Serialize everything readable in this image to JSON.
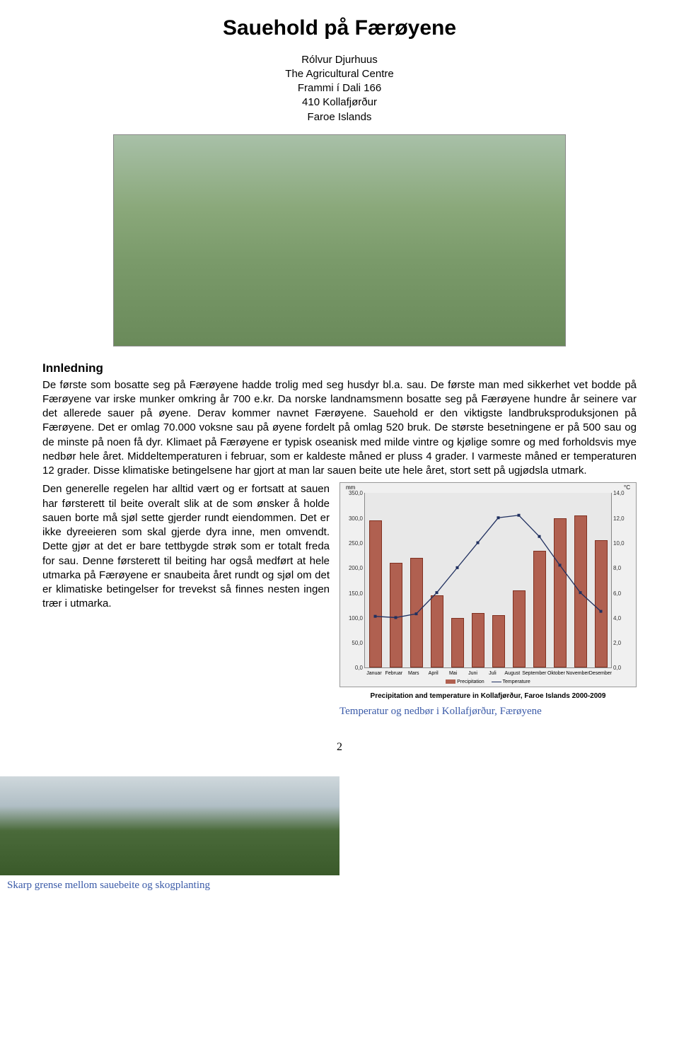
{
  "title": "Sauehold på Færøyene",
  "author": {
    "name": "Rólvur Djurhuus",
    "affiliation": "The Agricultural Centre",
    "address1": "Frammi í Dali 166",
    "address2": "410 Kollafjørður",
    "country": "Faroe Islands"
  },
  "section_heading": "Innledning",
  "para1": "De første som bosatte seg på Færøyene hadde trolig med seg husdyr bl.a. sau. De første man med sikkerhet vet bodde på Færøyene var irske munker omkring år 700 e.kr. Da norske landnamsmenn bosatte seg på Færøyene hundre år seinere var det allerede sauer på øyene. Derav kommer navnet Færøyene. Sauehold er den viktigste landbruksproduksjonen på Færøyene. Det er omlag 70.000 voksne sau på øyene fordelt på omlag 520 bruk. De største besetningene er på 500 sau og de minste på noen få dyr. Klimaet på Færøyene er typisk oseanisk med milde vintre og kjølige somre og med forholdsvis mye nedbør hele året. Middeltemperaturen i februar, som er kaldeste måned er pluss 4 grader. I varmeste måned er temperaturen 12 grader. Disse klimatiske betingelsene har gjort at man lar sauen beite ute hele året, stort sett på ugjødsla utmark.",
  "para_left": "Den generelle regelen har alltid vært og er fortsatt at sauen har førsterett til beite overalt slik at de som ønsker å holde sauen borte må sjøl sette gjerder rundt eiendommen. Det er ikke dyreeieren som skal gjerde dyra inne, men omvendt. Dette gjør at det er bare tettbygde strøk som er totalt freda for sau. Denne førsterett til beiting har også medført at hele utmarka på Færøyene er snaubeita året rundt og sjøl om det er klimatiske betingelser for trevekst så finnes nesten ingen trær i utmarka.",
  "chart": {
    "type": "combo-bar-line",
    "background_color": "#e8e8e8",
    "panel_color": "#f0f0f0",
    "bar_color": "#b06050",
    "bar_border_color": "#803020",
    "line_color": "#203060",
    "marker_color": "#203060",
    "axis_left_label": "mm",
    "axis_right_label": "°C",
    "y_left": {
      "min": 0,
      "max": 350,
      "step": 50,
      "ticks": [
        "0,0",
        "50,0",
        "100,0",
        "150,0",
        "200,0",
        "250,0",
        "300,0",
        "350,0"
      ]
    },
    "y_right": {
      "min": 0,
      "max": 14,
      "step": 2,
      "ticks": [
        "0,0",
        "2,0",
        "4,0",
        "6,0",
        "8,0",
        "10,0",
        "12,0",
        "14,0"
      ]
    },
    "months": [
      "Januar",
      "Februar",
      "Mars",
      "April",
      "Mai",
      "Juni",
      "Juli",
      "August",
      "September",
      "Oktober",
      "November",
      "Desember"
    ],
    "precipitation": [
      295,
      210,
      220,
      145,
      100,
      110,
      105,
      155,
      235,
      300,
      305,
      255
    ],
    "temperature": [
      4.1,
      4.0,
      4.3,
      6.0,
      8.0,
      10.0,
      12.0,
      12.2,
      10.5,
      8.2,
      6.0,
      4.5
    ],
    "legend": {
      "bar": "Precipitation",
      "line": "Temperature"
    },
    "title": "Precipitation and temperature in Kollafjørður, Faroe Islands 2000-2009",
    "subtitle": "Temperatur og nedbør i Kollafjørður, Færøyene"
  },
  "page_number": "2",
  "bottom_caption": "Skarp grense mellom sauebeite og skogplanting"
}
